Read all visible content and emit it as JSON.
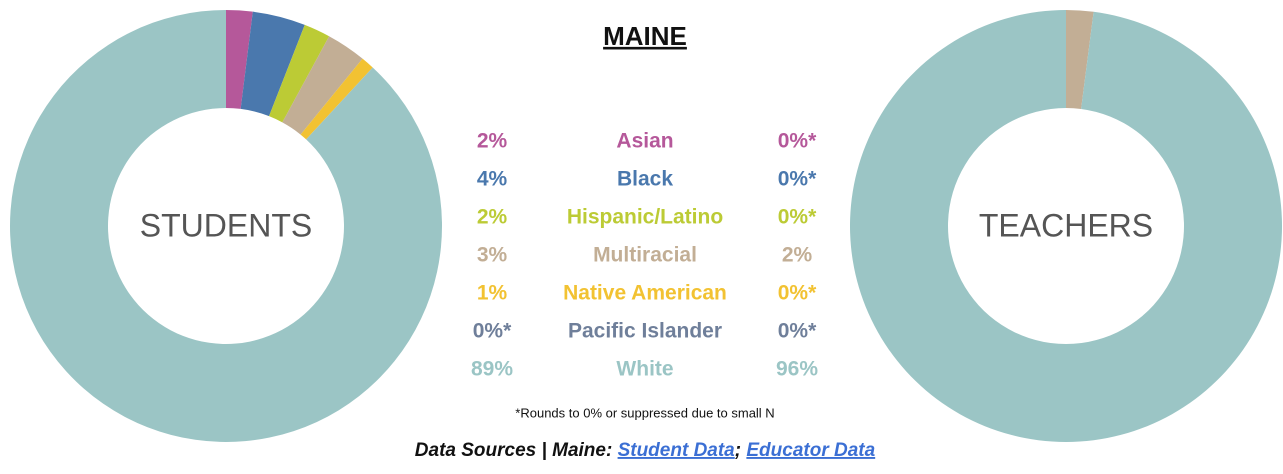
{
  "chart_data": {
    "type": "pie",
    "donut": true,
    "title": "MAINE",
    "categories": [
      "Asian",
      "Black",
      "Hispanic/Latino",
      "Multiracial",
      "Native American",
      "Pacific Islander",
      "White"
    ],
    "colors": [
      "#b5589a",
      "#4a78ad",
      "#bccb35",
      "#c2ae95",
      "#f2c232",
      "#6f7f9a",
      "#9bc5c5"
    ],
    "series": [
      {
        "name": "STUDENTS",
        "values": [
          2,
          4,
          2,
          3,
          1,
          0,
          89
        ],
        "value_labels": [
          "2%",
          "4%",
          "2%",
          "3%",
          "1%",
          "0%*",
          "89%"
        ]
      },
      {
        "name": "TEACHERS",
        "values": [
          0,
          0,
          0,
          2,
          0,
          0,
          96
        ],
        "value_labels": [
          "0%*",
          "0%*",
          "0%*",
          "2%",
          "0%*",
          "0%*",
          "96%"
        ]
      }
    ],
    "footnote": "*Rounds to 0% or suppressed due to small N",
    "sources": {
      "label": "Data Sources | Maine:",
      "links": [
        "Student Data",
        "Educator Data"
      ],
      "separator": ";"
    }
  }
}
